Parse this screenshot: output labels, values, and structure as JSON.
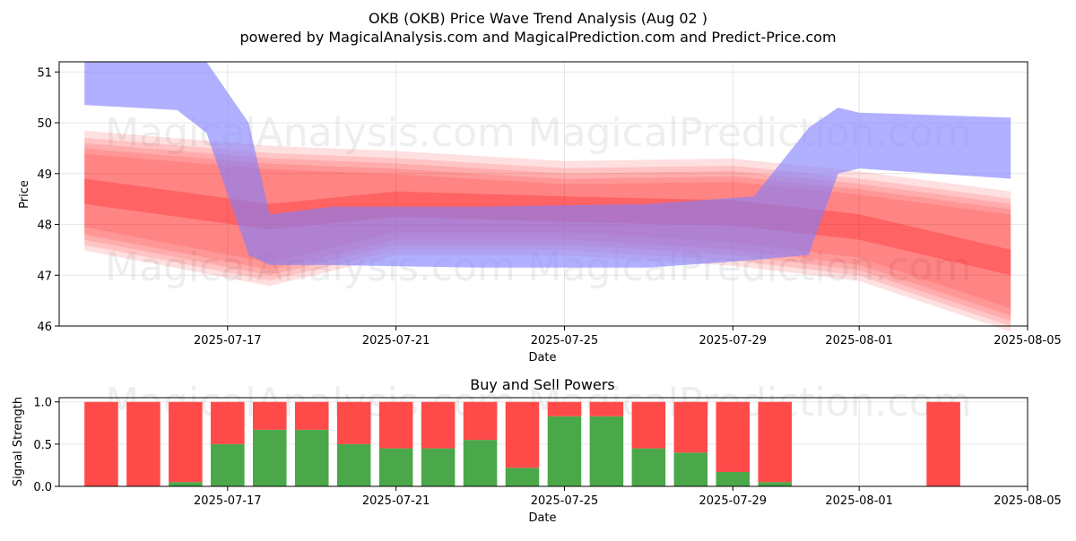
{
  "title_line1": "OKB (OKB) Price Wave Trend Analysis (Aug 02 )",
  "title_line2": "powered by MagicalAnalysis.com and MagicalPrediction.com and Predict-Price.com",
  "watermarks": [
    "MagicalAnalysis.com",
    "MagicalPrediction.com"
  ],
  "colors": {
    "blue_band": "#8080ff",
    "red_band": "#ff0000",
    "buy": "#4aa84a",
    "sell": "#ff4a4a"
  },
  "chart_data": [
    {
      "type": "area",
      "title": "",
      "xlabel": "Date",
      "ylabel": "Price",
      "xlim": [
        "2025-07-13",
        "2025-08-05"
      ],
      "ylim": [
        46,
        51.2
      ],
      "x_ticks": [
        "2025-07-17",
        "2025-07-21",
        "2025-07-25",
        "2025-07-29",
        "2025-08-01",
        "2025-08-05"
      ],
      "y_ticks": [
        46,
        47,
        48,
        49,
        50,
        51
      ],
      "grid": true,
      "series": [
        {
          "color": "#8080ff",
          "kind": "band",
          "points": [
            {
              "x": "2025-07-13.6",
              "lo": 50.35,
              "hi": 51.2
            },
            {
              "x": "2025-07-15.8",
              "lo": 50.25,
              "hi": 51.2
            },
            {
              "x": "2025-07-16.5",
              "lo": 49.8,
              "hi": 51.2
            },
            {
              "x": "2025-07-17.5",
              "lo": 47.4,
              "hi": 50.0
            },
            {
              "x": "2025-07-18",
              "lo": 47.2,
              "hi": 48.2
            },
            {
              "x": "2025-07-19.5",
              "lo": 47.2,
              "hi": 48.35
            },
            {
              "x": "2025-07-23",
              "lo": 47.15,
              "hi": 48.35
            },
            {
              "x": "2025-07-27",
              "lo": 47.15,
              "hi": 48.4
            },
            {
              "x": "2025-07-29.5",
              "lo": 47.3,
              "hi": 48.55
            },
            {
              "x": "2025-07-30.8",
              "lo": 47.4,
              "hi": 49.9
            },
            {
              "x": "2025-07-31.5",
              "lo": 49.0,
              "hi": 50.3
            },
            {
              "x": "2025-08-01",
              "lo": 49.1,
              "hi": 50.2
            },
            {
              "x": "2025-08-04.6",
              "lo": 48.9,
              "hi": 50.1
            }
          ]
        },
        {
          "color": "#ff0000",
          "kind": "band",
          "points": [
            {
              "x": "2025-07-13.6",
              "lo": 47.7,
              "hi": 49.6
            },
            {
              "x": "2025-07-18",
              "lo": 47.0,
              "hi": 49.3
            },
            {
              "x": "2025-07-21",
              "lo": 47.6,
              "hi": 49.2
            },
            {
              "x": "2025-07-25",
              "lo": 47.6,
              "hi": 49.0
            },
            {
              "x": "2025-07-29",
              "lo": 47.4,
              "hi": 49.05
            },
            {
              "x": "2025-08-01",
              "lo": 47.1,
              "hi": 48.8
            },
            {
              "x": "2025-08-04.6",
              "lo": 46.1,
              "hi": 48.4
            }
          ]
        }
      ]
    },
    {
      "type": "bar",
      "title": "Buy and Sell Powers",
      "xlabel": "Date",
      "ylabel": "Signal Strength",
      "ylim": [
        0,
        1.05
      ],
      "x_ticks": [
        "2025-07-17",
        "2025-07-21",
        "2025-07-25",
        "2025-07-29",
        "2025-08-01",
        "2025-08-05"
      ],
      "y_ticks": [
        "0.0",
        "0.5",
        "1.0"
      ],
      "grid": true,
      "categories": [
        "2025-07-14",
        "2025-07-15",
        "2025-07-16",
        "2025-07-17",
        "2025-07-18",
        "2025-07-19",
        "2025-07-20",
        "2025-07-21",
        "2025-07-22",
        "2025-07-23",
        "2025-07-24",
        "2025-07-25",
        "2025-07-26",
        "2025-07-27",
        "2025-07-28",
        "2025-07-29",
        "2025-07-30",
        "2025-08-03"
      ],
      "series": [
        {
          "values": [
            0.0,
            0.0,
            0.05,
            0.5,
            0.67,
            0.67,
            0.5,
            0.45,
            0.45,
            0.55,
            0.22,
            0.83,
            0.83,
            0.45,
            0.4,
            0.17,
            0.05,
            0.0
          ]
        },
        {
          "values": [
            1.0,
            1.0,
            0.95,
            0.5,
            0.33,
            0.33,
            0.5,
            0.55,
            0.55,
            0.45,
            0.78,
            0.17,
            0.17,
            0.55,
            0.6,
            0.83,
            0.95,
            1.0
          ]
        }
      ]
    }
  ]
}
